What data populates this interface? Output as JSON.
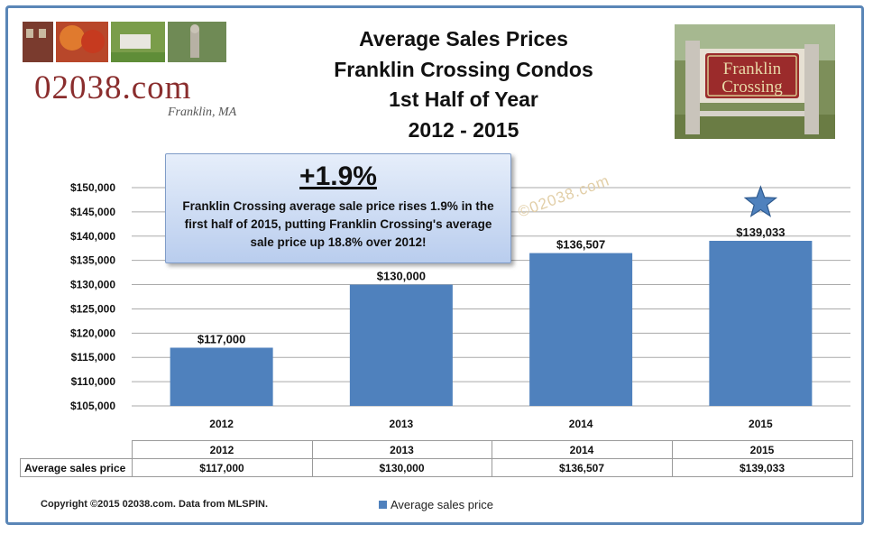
{
  "logo": {
    "text": "02038.com",
    "subtext": "Franklin, MA"
  },
  "title": {
    "line1": "Average Sales Prices",
    "line2": "Franklin Crossing Condos",
    "line3": "1st Half of Year",
    "line4": "2012 - 2015"
  },
  "sign": {
    "text_line1": "Franklin",
    "text_line2": "Crossing"
  },
  "callout": {
    "headline": "+1.9%",
    "text": "Franklin Crossing average sale price rises 1.9% in the first half of 2015, putting Franklin Crossing's average sale price up 18.8% over 2012!"
  },
  "watermark": "©02038.com",
  "colors": {
    "bar": "#4f81bd",
    "grid": "#aaaaaa",
    "frame": "#5a86b7",
    "logo": "#8a2d2d"
  },
  "chart_data": {
    "type": "bar",
    "categories": [
      "2012",
      "2013",
      "2014",
      "2015"
    ],
    "series": [
      {
        "name": "Average sales price",
        "values": [
          117000,
          130000,
          136507,
          139033
        ]
      }
    ],
    "data_labels": [
      "$117,000",
      "$130,000",
      "$136,507",
      "$139,033"
    ],
    "y_ticks": [
      "$105,000",
      "$110,000",
      "$115,000",
      "$120,000",
      "$125,000",
      "$130,000",
      "$135,000",
      "$140,000",
      "$145,000",
      "$150,000"
    ],
    "ylim": [
      105000,
      150000
    ],
    "grid": true,
    "highlight_marker": "star-icon over 2015 bar",
    "legend_position": "bottom"
  },
  "table": {
    "row_label": "Average sales price",
    "header": [
      "2012",
      "2013",
      "2014",
      "2015"
    ],
    "values": [
      "$117,000",
      "$130,000",
      "$136,507",
      "$139,033"
    ]
  },
  "footer": {
    "copyright": "Copyright ©2015 02038.com. Data from MLSPIN.",
    "legend_label": "Average sales price"
  }
}
